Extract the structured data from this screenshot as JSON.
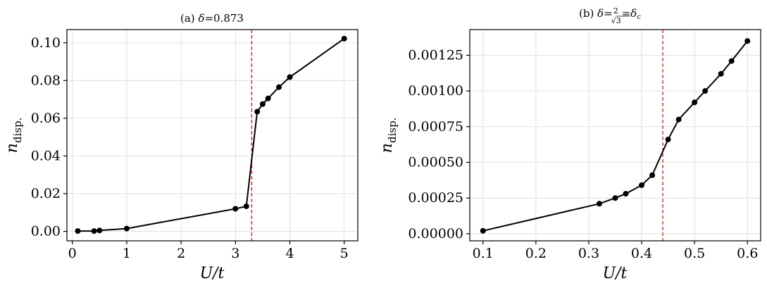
{
  "chart_data": [
    {
      "type": "line",
      "title": "(a) δ=0.873",
      "title_parts": {
        "prefix": "(a) ",
        "variable": "δ",
        "rest": "=0.873"
      },
      "xlabel": "U/t",
      "ylabel": "n",
      "ylabel_subscript": "disp.",
      "xlim": [
        -0.1,
        5.25
      ],
      "ylim": [
        -0.005,
        0.107
      ],
      "xticks": [
        0,
        1,
        2,
        3,
        4,
        5
      ],
      "xtick_labels": [
        "0",
        "1",
        "2",
        "3",
        "4",
        "5"
      ],
      "yticks": [
        0.0,
        0.02,
        0.04,
        0.06,
        0.08,
        0.1
      ],
      "ytick_labels": [
        "0.00",
        "0.02",
        "0.04",
        "0.06",
        "0.08",
        "0.10"
      ],
      "grid": true,
      "vline": {
        "x": 3.3,
        "color": "#e00000",
        "style": "dashed"
      },
      "series": [
        {
          "color": "#000000",
          "marker": "circle",
          "x": [
            0.1,
            0.4,
            0.5,
            1.0,
            3.0,
            3.2,
            3.4,
            3.5,
            3.6,
            3.8,
            4.0,
            5.0
          ],
          "y": [
            0.0002,
            0.0002,
            0.0005,
            0.0015,
            0.012,
            0.0133,
            0.0635,
            0.0675,
            0.0705,
            0.0765,
            0.0818,
            0.1022
          ]
        }
      ]
    },
    {
      "type": "line",
      "title": "(b) δ=2/√3=δc",
      "title_parts": {
        "prefix": "(b) ",
        "variable": "δ",
        "eq1": "=",
        "frac_num": "2",
        "frac_den": "√3",
        "eq2": "=",
        "delta_c": "δ",
        "delta_c_sub": "c"
      },
      "xlabel": "U/t",
      "ylabel": "n",
      "ylabel_subscript": "disp.",
      "xlim": [
        0.075,
        0.625
      ],
      "ylim": [
        -5e-05,
        0.00143
      ],
      "xticks": [
        0.1,
        0.2,
        0.3,
        0.4,
        0.5,
        0.6
      ],
      "xtick_labels": [
        "0.1",
        "0.2",
        "0.3",
        "0.4",
        "0.5",
        "0.6"
      ],
      "yticks": [
        0.0,
        0.00025,
        0.0005,
        0.00075,
        0.001,
        0.00125
      ],
      "ytick_labels": [
        "0.00000",
        "0.00025",
        "0.00050",
        "0.00075",
        "0.00100",
        "0.00125"
      ],
      "grid": true,
      "vline": {
        "x": 0.44,
        "color": "#e00000",
        "style": "dashed"
      },
      "series": [
        {
          "color": "#000000",
          "marker": "circle",
          "x": [
            0.1,
            0.32,
            0.35,
            0.37,
            0.4,
            0.42,
            0.45,
            0.47,
            0.5,
            0.52,
            0.55,
            0.57,
            0.6
          ],
          "y": [
            2e-05,
            0.00021,
            0.00025,
            0.00028,
            0.00034,
            0.00041,
            0.00066,
            0.0008,
            0.00092,
            0.001,
            0.00112,
            0.00121,
            0.00135
          ]
        }
      ]
    }
  ]
}
